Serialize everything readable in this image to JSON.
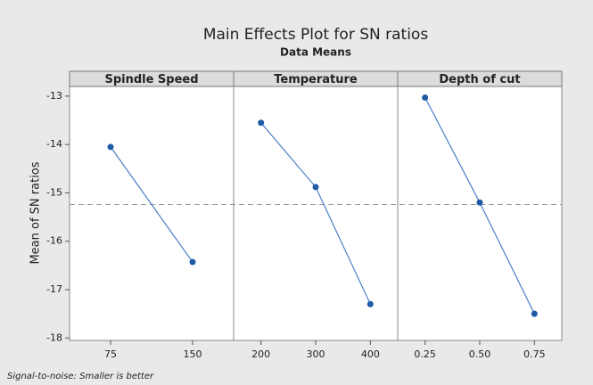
{
  "chart_data": {
    "type": "line",
    "title": "Main Effects Plot for SN ratios",
    "subtitle": "Data Means",
    "ylabel": "Mean of SN ratios",
    "footnote": "Signal-to-noise: Smaller is better",
    "color": "#1f5aa6",
    "ylim": [
      -18.05,
      -12.8
    ],
    "yticks": [
      -13,
      -14,
      -15,
      -16,
      -17,
      -18
    ],
    "mean_line": -15.24,
    "panels": [
      {
        "title": "Spindle Speed",
        "categories": [
          "75",
          "150"
        ],
        "values": [
          -14.05,
          -16.43
        ]
      },
      {
        "title": "Temperature",
        "categories": [
          "200",
          "300",
          "400"
        ],
        "values": [
          -13.55,
          -14.88,
          -17.3
        ]
      },
      {
        "title": "Depth of cut",
        "categories": [
          "0.25",
          "0.50",
          "0.75"
        ],
        "values": [
          -13.03,
          -15.2,
          -17.5
        ]
      }
    ]
  }
}
